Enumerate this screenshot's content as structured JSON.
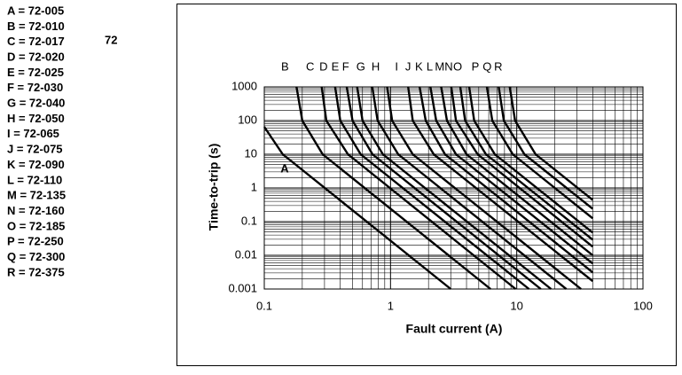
{
  "chart_data": {
    "type": "line",
    "fuse_list": [
      "A =  72-005",
      "B =  72-010",
      "C =  72-017",
      "D =  72-020",
      "E =  72-025",
      "F =  72-030",
      "G =  72-040",
      "H =  72-050",
      "I  =  72-065",
      "J =  72-075",
      "K =  72-090",
      "L =  72-110",
      "M =  72-135",
      "N =  72-160",
      "O =  72-185",
      "P =  72-250",
      "Q =  72-300",
      "R =  72-375"
    ],
    "note": "72",
    "x_label": "Fault current (A)",
    "y_label": "Time-to-trip (s)",
    "log_x": true,
    "log_y": true,
    "grid": true,
    "minor_grid": true,
    "color": "#000000",
    "xlim": [
      0.1,
      100
    ],
    "ylim": [
      0.001,
      1000
    ],
    "xticks": [
      0.1,
      1,
      10,
      100
    ],
    "yticks": [
      0.001,
      0.01,
      0.1,
      1,
      10,
      100,
      1000
    ],
    "series": [
      {
        "name": "A",
        "x": [
          0.1,
          0.14,
          3
        ],
        "values": [
          65,
          10,
          0.001
        ]
      },
      {
        "name": "B",
        "x": [
          0.18,
          0.2,
          0.29,
          6.2
        ],
        "values": [
          1000,
          100,
          10,
          0.001
        ]
      },
      {
        "name": "C",
        "x": [
          0.285,
          0.31,
          0.46,
          9.8
        ],
        "values": [
          1000,
          100,
          10,
          0.001
        ]
      },
      {
        "name": "D",
        "x": [
          0.364,
          0.4,
          0.58,
          12.5
        ],
        "values": [
          1000,
          100,
          10,
          0.001
        ]
      },
      {
        "name": "E",
        "x": [
          0.45,
          0.5,
          0.72,
          15.5
        ],
        "values": [
          1000,
          100,
          10,
          0.001
        ]
      },
      {
        "name": "F",
        "x": [
          0.544,
          0.6,
          0.87,
          18.7
        ],
        "values": [
          1000,
          100,
          10,
          0.001
        ]
      },
      {
        "name": "G",
        "x": [
          0.717,
          0.79,
          1.15,
          24.7
        ],
        "values": [
          1000,
          100,
          10,
          0.001
        ]
      },
      {
        "name": "H",
        "x": [
          0.94,
          1.03,
          1.5,
          32.3
        ],
        "values": [
          1000,
          100,
          10,
          0.001
        ]
      },
      {
        "name": "I",
        "x": [
          1.38,
          1.5,
          2.2,
          40
        ],
        "values": [
          1000,
          100,
          10,
          0.0017
        ]
      },
      {
        "name": "J",
        "x": [
          1.7,
          1.9,
          2.7,
          40
        ],
        "values": [
          1000,
          100,
          10,
          0.0031
        ]
      },
      {
        "name": "K",
        "x": [
          2.07,
          2.3,
          3.3,
          40
        ],
        "values": [
          1000,
          100,
          10,
          0.0057
        ]
      },
      {
        "name": "L",
        "x": [
          2.52,
          2.8,
          4,
          40
        ],
        "values": [
          1000,
          100,
          10,
          0.01
        ]
      },
      {
        "name": "M",
        "x": [
          3.03,
          3.3,
          4.9,
          40
        ],
        "values": [
          1000,
          100,
          10,
          0.018
        ]
      },
      {
        "name": "N",
        "x": [
          3.57,
          3.9,
          5.7,
          40
        ],
        "values": [
          1000,
          100,
          10,
          0.029
        ]
      },
      {
        "name": "O",
        "x": [
          4.2,
          4.6,
          6.7,
          40
        ],
        "values": [
          1000,
          100,
          10,
          0.047
        ]
      },
      {
        "name": "P",
        "x": [
          5.8,
          6.4,
          9.3,
          40
        ],
        "values": [
          1000,
          100,
          10,
          0.125
        ]
      },
      {
        "name": "Q",
        "x": [
          7.2,
          7.9,
          11.5,
          40
        ],
        "values": [
          1000,
          100,
          10,
          0.24
        ]
      },
      {
        "name": "R",
        "x": [
          8.8,
          9.7,
          14.1,
          40
        ],
        "values": [
          1000,
          100,
          10,
          0.44
        ]
      }
    ]
  }
}
